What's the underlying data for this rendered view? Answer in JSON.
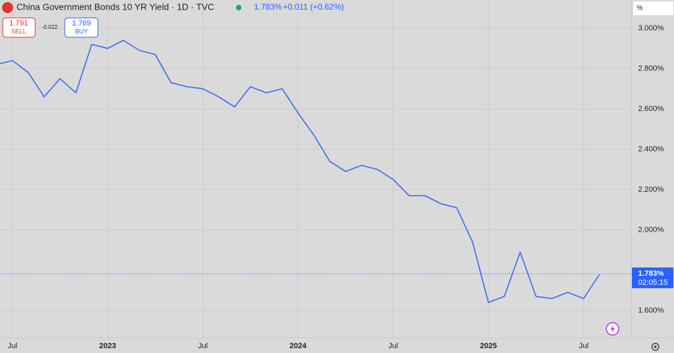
{
  "chart_data": {
    "type": "line",
    "title": "China Government Bonds 10 YR Yield · 1D · TVC",
    "last_value": "1.783%",
    "change": "+0.011 (+0.62%)",
    "sell_price": "1.791",
    "sell_label": "SELL",
    "spread": "-0.022",
    "buy_price": "1.769",
    "buy_label": "BUY",
    "unit_label": "%",
    "current_value": 1.783,
    "current_label": "1.783%",
    "countdown": "02:05:15",
    "x": [
      "2022-06",
      "2022-07",
      "2022-08",
      "2022-09",
      "2022-10",
      "2022-11",
      "2022-12",
      "2023-01",
      "2023-02",
      "2023-03",
      "2023-04",
      "2023-05",
      "2023-06",
      "2023-07",
      "2023-08",
      "2023-09",
      "2023-10",
      "2023-11",
      "2023-12",
      "2024-01",
      "2024-02",
      "2024-03",
      "2024-04",
      "2024-05",
      "2024-06",
      "2024-07",
      "2024-08",
      "2024-09",
      "2024-10",
      "2024-11",
      "2024-12",
      "2025-01",
      "2025-02",
      "2025-03",
      "2025-04",
      "2025-05",
      "2025-06",
      "2025-07",
      "2025-08"
    ],
    "series": [
      {
        "name": "China Government Bonds 10 YR Yield",
        "color": "#3b6cf0",
        "values": [
          2.82,
          2.84,
          2.78,
          2.66,
          2.75,
          2.68,
          2.92,
          2.9,
          2.94,
          2.89,
          2.87,
          2.73,
          2.71,
          2.7,
          2.66,
          2.61,
          2.71,
          2.68,
          2.7,
          2.58,
          2.47,
          2.34,
          2.29,
          2.32,
          2.3,
          2.25,
          2.17,
          2.17,
          2.13,
          2.11,
          1.94,
          1.64,
          1.67,
          1.89,
          1.67,
          1.66,
          1.69,
          1.66,
          1.78
        ]
      }
    ],
    "ylim": [
      1.465,
      3.14
    ],
    "yticks": [
      {
        "value": 3.0,
        "label": "3.000%"
      },
      {
        "value": 2.8,
        "label": "2.800%"
      },
      {
        "value": 2.6,
        "label": "2.600%"
      },
      {
        "value": 2.4,
        "label": "2.400%"
      },
      {
        "value": 2.2,
        "label": "2.200%"
      },
      {
        "value": 2.0,
        "label": "2.000%"
      },
      {
        "value": 1.6,
        "label": "1.600%"
      }
    ],
    "xticks": [
      {
        "value": "2022-07",
        "label": "Jul"
      },
      {
        "value": "2023-01",
        "label": "2023"
      },
      {
        "value": "2023-07",
        "label": "Jul"
      },
      {
        "value": "2024-01",
        "label": "2024"
      },
      {
        "value": "2024-07",
        "label": "Jul"
      },
      {
        "value": "2025-01",
        "label": "2025"
      },
      {
        "value": "2025-07",
        "label": "Jul"
      }
    ],
    "grid": true
  }
}
